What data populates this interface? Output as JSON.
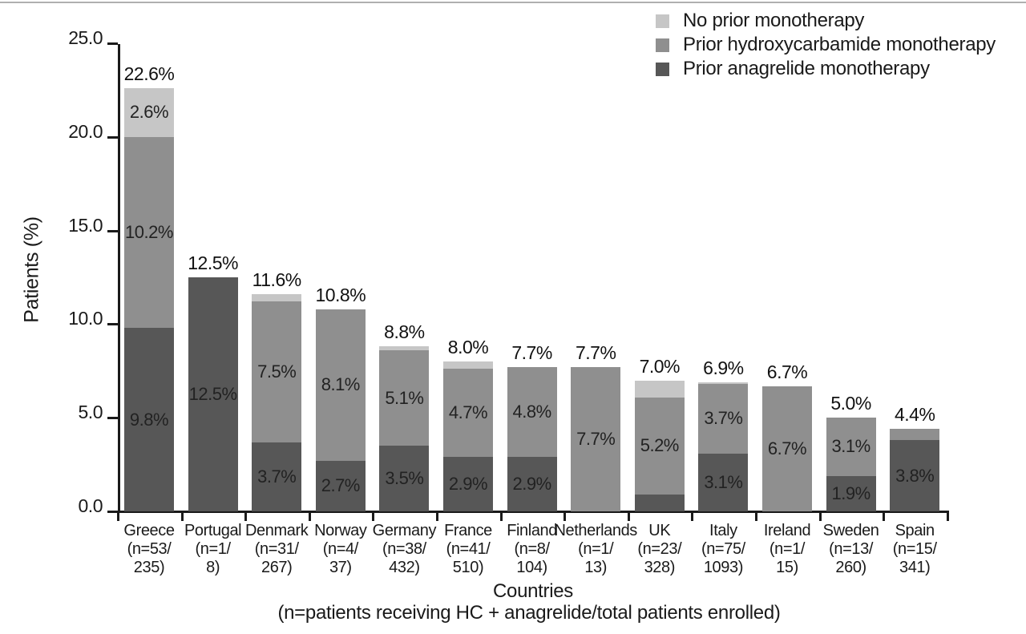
{
  "chart_data": {
    "type": "bar",
    "stacked": true,
    "ylabel": "Patients (%)",
    "ylim": [
      0,
      25
    ],
    "yticks": [
      {
        "label": "0.0",
        "value": 0
      },
      {
        "label": "5.0",
        "value": 5
      },
      {
        "label": "10.0",
        "value": 10
      },
      {
        "label": "15.0",
        "value": 15
      },
      {
        "label": "20.0",
        "value": 20
      },
      {
        "label": "25.0",
        "value": 25
      }
    ],
    "xlabel": "Countries",
    "xlabel_note": "(n=patients receiving HC + anagrelide/total patients enrolled)",
    "legend_position": "top-right",
    "grid": false,
    "legend": [
      {
        "series": "none",
        "label": "No prior monotherapy",
        "color": "#c6c6c6"
      },
      {
        "series": "hydroxycarbamide",
        "label": "Prior hydroxycarbamide monotherapy",
        "color": "#8f8f8f"
      },
      {
        "series": "anagrelide",
        "label": "Prior anagrelide monotherapy",
        "color": "#575757"
      }
    ],
    "categories": [
      {
        "country": "Greece",
        "tick_lines": [
          "Greece",
          "(n=53/",
          "235)"
        ],
        "total_label": "22.6%",
        "segments": [
          {
            "series": "anagrelide",
            "value": 9.8,
            "label": "9.8%"
          },
          {
            "series": "hydroxycarbamide",
            "value": 10.2,
            "label": "10.2%"
          },
          {
            "series": "none",
            "value": 2.6,
            "label": "2.6%"
          }
        ]
      },
      {
        "country": "Portugal",
        "tick_lines": [
          "Portugal",
          "(n=1/",
          "8)"
        ],
        "total_label": "12.5%",
        "segments": [
          {
            "series": "anagrelide",
            "value": 12.5,
            "label": "12.5%"
          }
        ]
      },
      {
        "country": "Denmark",
        "tick_lines": [
          "Denmark",
          "(n=31/",
          "267)"
        ],
        "total_label": "11.6%",
        "segments": [
          {
            "series": "anagrelide",
            "value": 3.7,
            "label": "3.7%"
          },
          {
            "series": "hydroxycarbamide",
            "value": 7.5,
            "label": "7.5%"
          },
          {
            "series": "none",
            "value": 0.4,
            "label": ""
          }
        ]
      },
      {
        "country": "Norway",
        "tick_lines": [
          "Norway",
          "(n=4/",
          "37)"
        ],
        "total_label": "10.8%",
        "segments": [
          {
            "series": "anagrelide",
            "value": 2.7,
            "label": "2.7%"
          },
          {
            "series": "hydroxycarbamide",
            "value": 8.1,
            "label": "8.1%"
          }
        ]
      },
      {
        "country": "Germany",
        "tick_lines": [
          "Germany",
          "(n=38/",
          "432)"
        ],
        "total_label": "8.8%",
        "segments": [
          {
            "series": "anagrelide",
            "value": 3.5,
            "label": "3.5%"
          },
          {
            "series": "hydroxycarbamide",
            "value": 5.1,
            "label": "5.1%"
          },
          {
            "series": "none",
            "value": 0.2,
            "label": ""
          }
        ]
      },
      {
        "country": "France",
        "tick_lines": [
          "France",
          "(n=41/",
          "510)"
        ],
        "total_label": "8.0%",
        "segments": [
          {
            "series": "anagrelide",
            "value": 2.9,
            "label": "2.9%"
          },
          {
            "series": "hydroxycarbamide",
            "value": 4.7,
            "label": "4.7%"
          },
          {
            "series": "none",
            "value": 0.4,
            "label": ""
          }
        ]
      },
      {
        "country": "Finland",
        "tick_lines": [
          "Finland",
          "(n=8/",
          "104)"
        ],
        "total_label": "7.7%",
        "segments": [
          {
            "series": "anagrelide",
            "value": 2.9,
            "label": "2.9%"
          },
          {
            "series": "hydroxycarbamide",
            "value": 4.8,
            "label": "4.8%"
          }
        ]
      },
      {
        "country": "Netherlands",
        "tick_lines": [
          "Netherlands",
          "(n=1/",
          "13)"
        ],
        "total_label": "7.7%",
        "segments": [
          {
            "series": "hydroxycarbamide",
            "value": 7.7,
            "label": "7.7%"
          }
        ]
      },
      {
        "country": "UK",
        "tick_lines": [
          "UK",
          "(n=23/",
          "328)"
        ],
        "total_label": "7.0%",
        "segments": [
          {
            "series": "anagrelide",
            "value": 0.9,
            "label": ""
          },
          {
            "series": "hydroxycarbamide",
            "value": 5.2,
            "label": "5.2%"
          },
          {
            "series": "none",
            "value": 0.9,
            "label": ""
          }
        ]
      },
      {
        "country": "Italy",
        "tick_lines": [
          "Italy",
          "(n=75/",
          "1093)"
        ],
        "total_label": "6.9%",
        "segments": [
          {
            "series": "anagrelide",
            "value": 3.1,
            "label": "3.1%"
          },
          {
            "series": "hydroxycarbamide",
            "value": 3.7,
            "label": "3.7%"
          },
          {
            "series": "none",
            "value": 0.1,
            "label": ""
          }
        ]
      },
      {
        "country": "Ireland",
        "tick_lines": [
          "Ireland",
          "(n=1/",
          "15)"
        ],
        "total_label": "6.7%",
        "segments": [
          {
            "series": "hydroxycarbamide",
            "value": 6.7,
            "label": "6.7%"
          }
        ]
      },
      {
        "country": "Sweden",
        "tick_lines": [
          "Sweden",
          "(n=13/",
          "260)"
        ],
        "total_label": "5.0%",
        "segments": [
          {
            "series": "anagrelide",
            "value": 1.9,
            "label": "1.9%"
          },
          {
            "series": "hydroxycarbamide",
            "value": 3.1,
            "label": "3.1%"
          }
        ]
      },
      {
        "country": "Spain",
        "tick_lines": [
          "Spain",
          "(n=15/",
          "341)"
        ],
        "total_label": "4.4%",
        "segments": [
          {
            "series": "anagrelide",
            "value": 3.8,
            "label": "3.8%"
          },
          {
            "series": "hydroxycarbamide",
            "value": 0.6,
            "label": ""
          }
        ]
      }
    ],
    "colors": {
      "axis": "#1a1a1a",
      "light_series": "#c6c6c6",
      "mid_series": "#8f8f8f",
      "dark_series": "#575757"
    }
  }
}
